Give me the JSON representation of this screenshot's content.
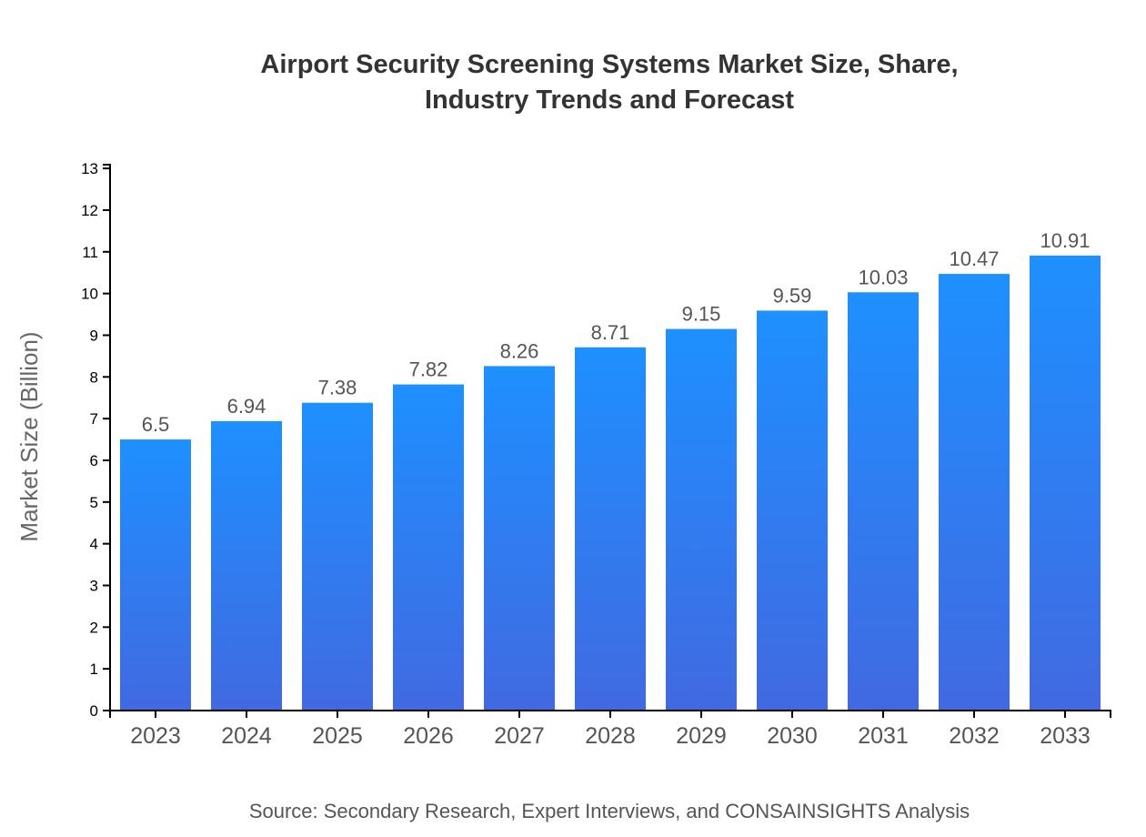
{
  "chart_data": {
    "type": "bar",
    "title_lines": [
      "Airport Security Screening Systems Market Size, Share,",
      "Industry Trends and Forecast"
    ],
    "xlabel": "",
    "ylabel": "Market Size (Billion)",
    "categories": [
      "2023",
      "2024",
      "2025",
      "2026",
      "2027",
      "2028",
      "2029",
      "2030",
      "2031",
      "2032",
      "2033"
    ],
    "values": [
      6.5,
      6.94,
      7.38,
      7.82,
      8.26,
      8.71,
      9.15,
      9.59,
      10.03,
      10.47,
      10.91
    ],
    "ylim": [
      0,
      13.09
    ],
    "yticks": [
      0,
      1,
      2,
      3,
      4,
      5,
      6,
      7,
      8,
      9,
      10,
      11,
      12,
      13
    ],
    "grid": false,
    "bar_gradient": {
      "top": "#1e90ff",
      "bottom": "#4169e1"
    },
    "source": "Source: Secondary Research, Expert Interviews, and CONSAINSIGHTS Analysis"
  }
}
